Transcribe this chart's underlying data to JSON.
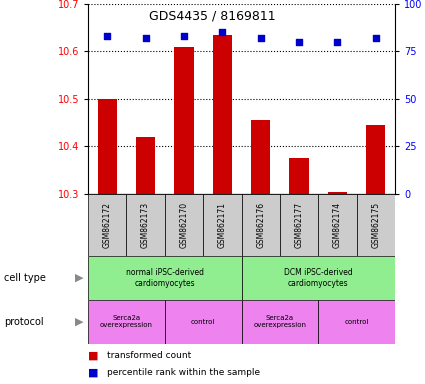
{
  "title": "GDS4435 / 8169811",
  "samples": [
    "GSM862172",
    "GSM862173",
    "GSM862170",
    "GSM862171",
    "GSM862176",
    "GSM862177",
    "GSM862174",
    "GSM862175"
  ],
  "red_values": [
    10.5,
    10.42,
    10.61,
    10.635,
    10.455,
    10.375,
    10.305,
    10.445
  ],
  "blue_values": [
    83,
    82,
    83,
    85,
    82,
    80,
    80,
    82
  ],
  "ylim_left": [
    10.3,
    10.7
  ],
  "ylim_right": [
    0,
    100
  ],
  "yticks_left": [
    10.3,
    10.4,
    10.5,
    10.6,
    10.7
  ],
  "yticks_right": [
    0,
    25,
    50,
    75,
    100
  ],
  "cell_type_groups": [
    {
      "label": "normal iPSC-derived\ncardiomyocytes",
      "start": 0,
      "end": 4,
      "color": "#90EE90"
    },
    {
      "label": "DCM iPSC-derived\ncardiomyocytes",
      "start": 4,
      "end": 8,
      "color": "#90EE90"
    }
  ],
  "protocol_groups": [
    {
      "label": "Serca2a\noverexpression",
      "start": 0,
      "end": 2,
      "color": "#EE82EE"
    },
    {
      "label": "control",
      "start": 2,
      "end": 4,
      "color": "#EE82EE"
    },
    {
      "label": "Serca2a\noverexpression",
      "start": 4,
      "end": 6,
      "color": "#EE82EE"
    },
    {
      "label": "control",
      "start": 6,
      "end": 8,
      "color": "#EE82EE"
    }
  ],
  "red_color": "#CC0000",
  "blue_color": "#0000CC",
  "bar_base": 10.3,
  "bg_color": "#FFFFFF",
  "sample_bg_color": "#CCCCCC"
}
